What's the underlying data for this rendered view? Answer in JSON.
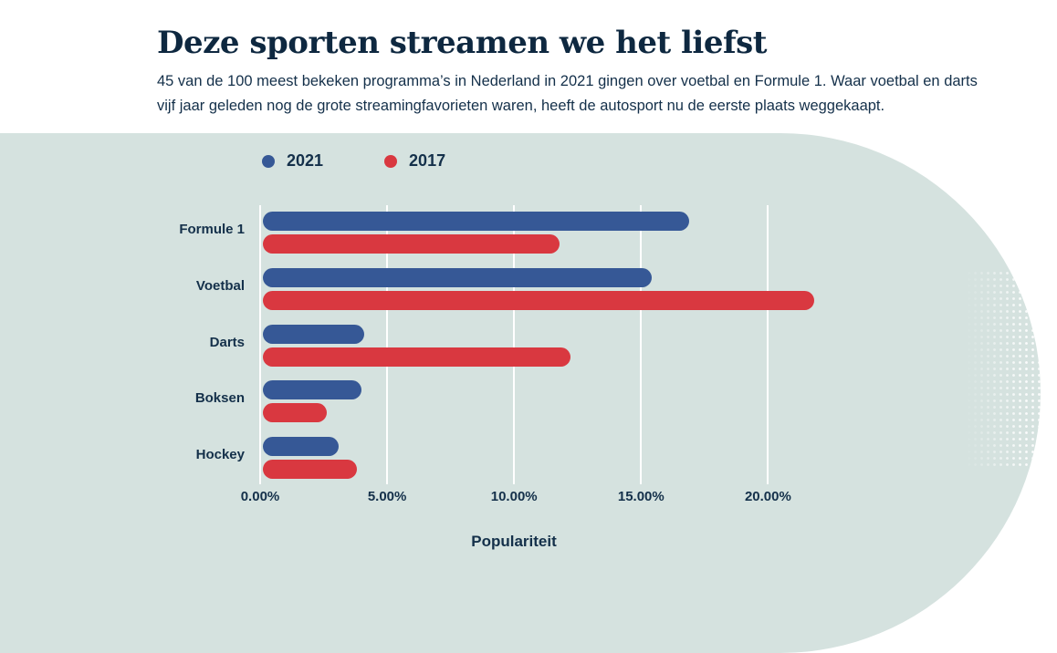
{
  "header": {
    "title": "Deze sporten streamen we het liefst",
    "subtitle": "45 van de 100 meest bekeken programma’s in Nederland in 2021 gingen over voetbal en Formule 1. Waar voetbal en darts vijf jaar geleden nog de grote streamingfavorieten waren, heeft de autosport nu de eerste plaats weggekaapt."
  },
  "legend": [
    {
      "label": "2021",
      "color": "#365896"
    },
    {
      "label": "2017",
      "color": "#d93840"
    }
  ],
  "chart_data": {
    "type": "bar",
    "orientation": "horizontal",
    "title": "Deze sporten streamen we het liefst",
    "categories": [
      "Formule 1",
      "Voetbal",
      "Darts",
      "Boksen",
      "Hockey"
    ],
    "series": [
      {
        "name": "2021",
        "color": "#365896",
        "values": [
          16.8,
          15.3,
          4.0,
          3.9,
          3.0
        ]
      },
      {
        "name": "2017",
        "color": "#d93840",
        "values": [
          11.7,
          21.7,
          12.1,
          2.5,
          3.7
        ]
      }
    ],
    "unit": "%",
    "xlabel": "Populariteit",
    "ylabel": "",
    "xlim": [
      0,
      20
    ],
    "x_ticks": [
      "0.00%",
      "5.00%",
      "10.00%",
      "15.00%",
      "20.00%"
    ],
    "grid": true,
    "legend_position": "top-left"
  },
  "colors": {
    "band_background": "#d5e2df",
    "text": "#14304a",
    "title": "#0e2840",
    "gridline": "#ffffff",
    "series_2021": "#365896",
    "series_2017": "#d93840"
  }
}
